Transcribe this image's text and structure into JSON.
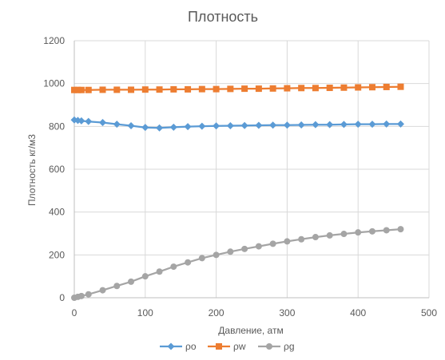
{
  "chart_data": {
    "type": "line",
    "title": "Плотность",
    "xlabel": "Давление, атм",
    "ylabel": "Плотность  кг/м3",
    "xlim": [
      0,
      500
    ],
    "ylim": [
      0,
      1200
    ],
    "x_ticks": [
      0,
      100,
      200,
      300,
      400,
      500
    ],
    "y_ticks": [
      0,
      200,
      400,
      600,
      800,
      1000,
      1200
    ],
    "grid": true,
    "legend": "bottom",
    "series": [
      {
        "name": "ρo",
        "color": "#5b9bd5",
        "marker": "diamond",
        "x": [
          0,
          5,
          10,
          20,
          40,
          60,
          80,
          100,
          120,
          140,
          160,
          180,
          200,
          220,
          240,
          260,
          280,
          300,
          320,
          340,
          360,
          380,
          400,
          420,
          440,
          460
        ],
        "y": [
          830,
          828,
          826,
          823,
          818,
          810,
          803,
          795,
          793,
          796,
          799,
          801,
          802,
          803,
          804,
          805,
          806,
          806,
          807,
          808,
          808,
          809,
          810,
          810,
          811,
          811
        ]
      },
      {
        "name": "ρw",
        "color": "#ed7d31",
        "marker": "square",
        "x": [
          0,
          5,
          10,
          20,
          40,
          60,
          80,
          100,
          120,
          140,
          160,
          180,
          200,
          220,
          240,
          260,
          280,
          300,
          320,
          340,
          360,
          380,
          400,
          420,
          440,
          460
        ],
        "y": [
          970,
          970,
          970,
          970,
          971,
          971,
          971,
          972,
          972,
          973,
          973,
          974,
          974,
          975,
          976,
          976,
          977,
          978,
          979,
          979,
          980,
          981,
          982,
          983,
          984,
          985
        ]
      },
      {
        "name": "ρg",
        "color": "#a5a5a5",
        "marker": "circle",
        "x": [
          0,
          5,
          10,
          20,
          40,
          60,
          80,
          100,
          120,
          140,
          160,
          180,
          200,
          220,
          240,
          260,
          280,
          300,
          320,
          340,
          360,
          380,
          400,
          420,
          440,
          460
        ],
        "y": [
          0,
          4,
          8,
          16,
          35,
          55,
          75,
          100,
          122,
          145,
          165,
          185,
          200,
          215,
          228,
          240,
          252,
          263,
          273,
          283,
          291,
          298,
          305,
          310,
          315,
          320
        ]
      }
    ]
  }
}
